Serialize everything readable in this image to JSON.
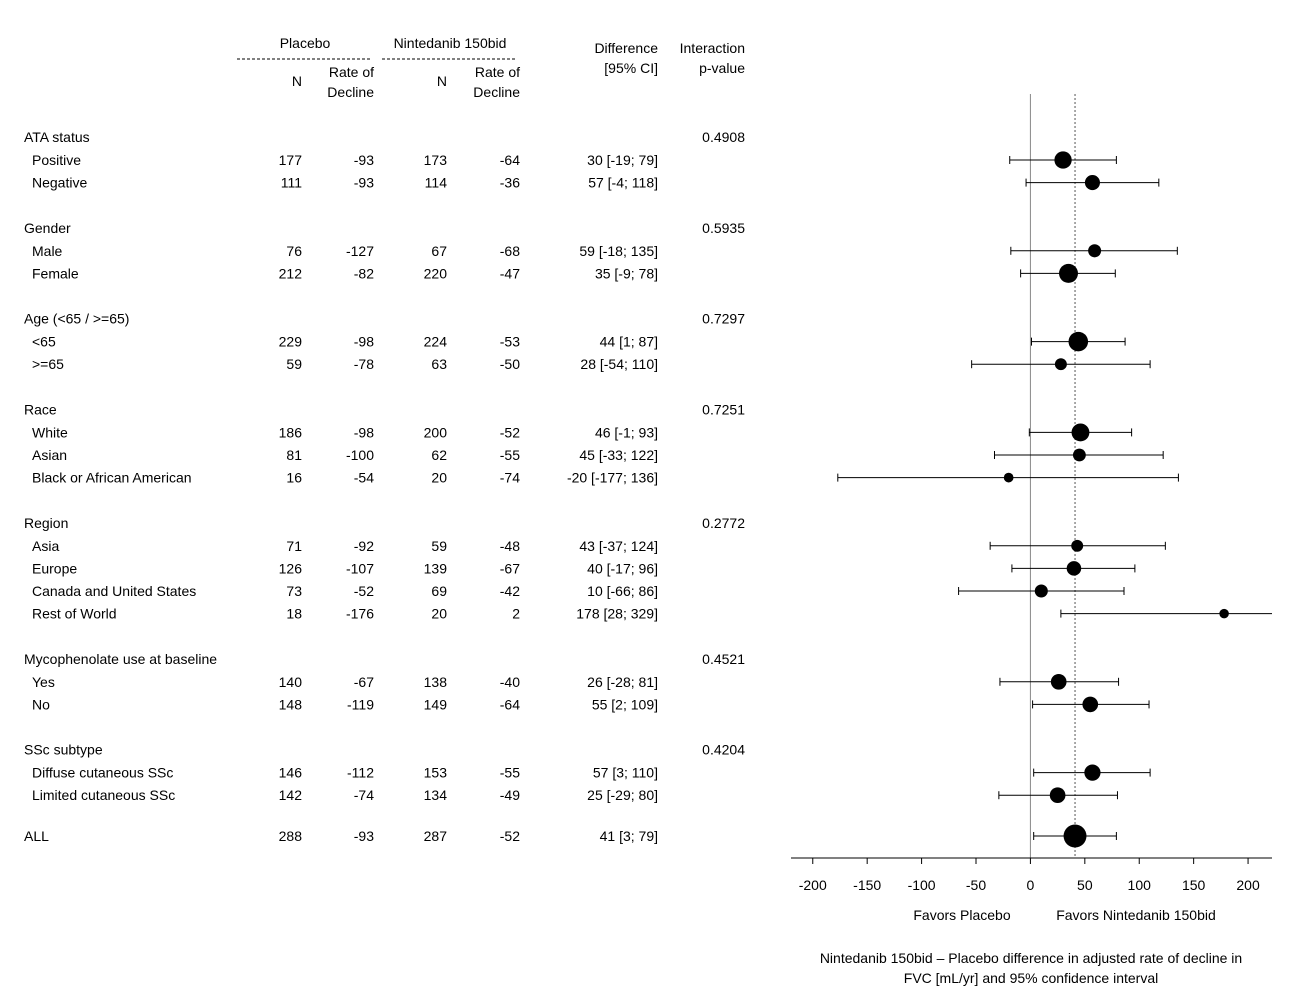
{
  "chart_data": {
    "type": "forest",
    "headers": {
      "placebo_group": "Placebo",
      "nintedanib_group": "Nintedanib 150bid",
      "n_label": "N",
      "rate_label_1": "Rate of",
      "rate_label_2": "Decline",
      "difference_1": "Difference",
      "difference_2": "[95% CI]",
      "interaction_1": "Interaction",
      "interaction_2": "p-value"
    },
    "groups": [
      {
        "name": "ATA status",
        "p_value": "0.4908",
        "rows": [
          {
            "label": "Positive",
            "n_placebo": "177",
            "rate_placebo": "-93",
            "n_nint": "173",
            "rate_nint": "-64",
            "diff_text": "30 [-19; 79]",
            "est": 30,
            "lo": -19,
            "hi": 79,
            "weight": 1.1
          },
          {
            "label": "Negative",
            "n_placebo": "111",
            "rate_placebo": "-93",
            "n_nint": "114",
            "rate_nint": "-36",
            "diff_text": "57 [-4; 118]",
            "est": 57,
            "lo": -4,
            "hi": 118,
            "weight": 0.9
          }
        ]
      },
      {
        "name": "Gender",
        "p_value": "0.5935",
        "rows": [
          {
            "label": "Male",
            "n_placebo": "76",
            "rate_placebo": "-127",
            "n_nint": "67",
            "rate_nint": "-68",
            "diff_text": "59 [-18; 135]",
            "est": 59,
            "lo": -18,
            "hi": 135,
            "weight": 0.72
          },
          {
            "label": "Female",
            "n_placebo": "212",
            "rate_placebo": "-82",
            "n_nint": "220",
            "rate_nint": "-47",
            "diff_text": "35 [-9; 78]",
            "est": 35,
            "lo": -9,
            "hi": 78,
            "weight": 1.25
          }
        ]
      },
      {
        "name": "Age (<65 / >=65)",
        "p_value": "0.7297",
        "rows": [
          {
            "label": "<65",
            "n_placebo": "229",
            "rate_placebo": "-98",
            "n_nint": "224",
            "rate_nint": "-53",
            "diff_text": "44 [1; 87]",
            "est": 44,
            "lo": 1,
            "hi": 87,
            "weight": 1.3
          },
          {
            "label": ">=65",
            "n_placebo": "59",
            "rate_placebo": "-78",
            "n_nint": "63",
            "rate_nint": "-50",
            "diff_text": "28 [-54; 110]",
            "est": 28,
            "lo": -54,
            "hi": 110,
            "weight": 0.62
          }
        ]
      },
      {
        "name": "Race",
        "p_value": "0.7251",
        "rows": [
          {
            "label": "White",
            "n_placebo": "186",
            "rate_placebo": "-98",
            "n_nint": "200",
            "rate_nint": "-52",
            "diff_text": "46 [-1; 93]",
            "est": 46,
            "lo": -1,
            "hi": 93,
            "weight": 1.15
          },
          {
            "label": "Asian",
            "n_placebo": "81",
            "rate_placebo": "-100",
            "n_nint": "62",
            "rate_nint": "-55",
            "diff_text": "45 [-33; 122]",
            "est": 45,
            "lo": -33,
            "hi": 122,
            "weight": 0.7
          },
          {
            "label": "Black or African American",
            "n_placebo": "16",
            "rate_placebo": "-54",
            "n_nint": "20",
            "rate_nint": "-74",
            "diff_text": "-20 [-177; 136]",
            "est": -20,
            "lo": -177,
            "hi": 136,
            "weight": 0.42
          }
        ]
      },
      {
        "name": "Region",
        "p_value": "0.2772",
        "rows": [
          {
            "label": "Asia",
            "n_placebo": "71",
            "rate_placebo": "-92",
            "n_nint": "59",
            "rate_nint": "-48",
            "diff_text": "43 [-37; 124]",
            "est": 43,
            "lo": -37,
            "hi": 124,
            "weight": 0.62
          },
          {
            "label": "Europe",
            "n_placebo": "126",
            "rate_placebo": "-107",
            "n_nint": "139",
            "rate_nint": "-67",
            "diff_text": "40 [-17; 96]",
            "est": 40,
            "lo": -17,
            "hi": 96,
            "weight": 0.85
          },
          {
            "label": "Canada and United States",
            "n_placebo": "73",
            "rate_placebo": "-52",
            "n_nint": "69",
            "rate_nint": "-42",
            "diff_text": "10 [-66; 86]",
            "est": 10,
            "lo": -66,
            "hi": 86,
            "weight": 0.72
          },
          {
            "label": "Rest of World",
            "n_placebo": "18",
            "rate_placebo": "-176",
            "n_nint": "20",
            "rate_nint": "2",
            "diff_text": "178 [28; 329]",
            "est": 178,
            "lo": 28,
            "hi": 329,
            "weight": 0.4
          }
        ]
      },
      {
        "name": "Mycophenolate use at baseline",
        "p_value": "0.4521",
        "rows": [
          {
            "label": "Yes",
            "n_placebo": "140",
            "rate_placebo": "-67",
            "n_nint": "138",
            "rate_nint": "-40",
            "diff_text": "26 [-28; 81]",
            "est": 26,
            "lo": -28,
            "hi": 81,
            "weight": 0.95
          },
          {
            "label": "No",
            "n_placebo": "148",
            "rate_placebo": "-119",
            "n_nint": "149",
            "rate_nint": "-64",
            "diff_text": "55 [2; 109]",
            "est": 55,
            "lo": 2,
            "hi": 109,
            "weight": 0.95
          }
        ]
      },
      {
        "name": "SSc subtype",
        "p_value": "0.4204",
        "rows": [
          {
            "label": "Diffuse cutaneous SSc",
            "n_placebo": "146",
            "rate_placebo": "-112",
            "n_nint": "153",
            "rate_nint": "-55",
            "diff_text": "57 [3; 110]",
            "est": 57,
            "lo": 3,
            "hi": 110,
            "weight": 1.0
          },
          {
            "label": "Limited cutaneous SSc",
            "n_placebo": "142",
            "rate_placebo": "-74",
            "n_nint": "134",
            "rate_nint": "-49",
            "diff_text": "25 [-29; 80]",
            "est": 25,
            "lo": -29,
            "hi": 80,
            "weight": 0.95
          }
        ]
      }
    ],
    "overall": {
      "label": "ALL",
      "n_placebo": "288",
      "rate_placebo": "-93",
      "n_nint": "287",
      "rate_nint": "-52",
      "diff_text": "41 [3; 79]",
      "est": 41,
      "lo": 3,
      "hi": 79,
      "weight": 1.6
    },
    "x_axis": {
      "range": [
        -220,
        222
      ],
      "ticks": [
        -200,
        -150,
        -100,
        -50,
        0,
        50,
        100,
        150,
        200
      ],
      "null_line": 0,
      "reference_line": 41,
      "favors_left": "Favors Placebo",
      "favors_right": "Favors Nintedanib 150bid",
      "title_line1": "Nintedanib 150bid – Placebo difference in adjusted rate of decline in",
      "title_line2": "FVC [mL/yr] and 95% confidence interval"
    }
  }
}
